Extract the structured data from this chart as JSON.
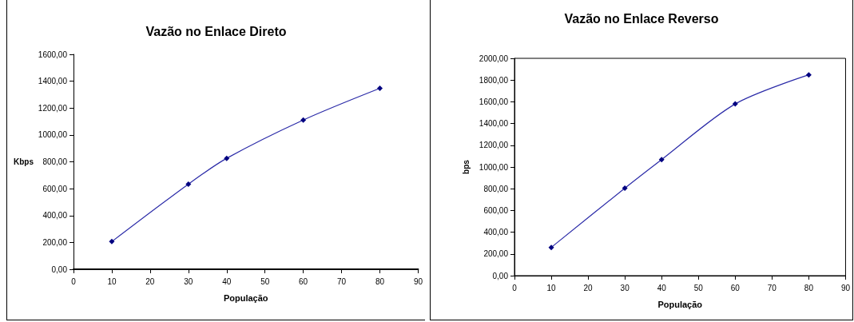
{
  "chart_data": [
    {
      "type": "line",
      "title": "Vazão no Enlace Direto",
      "xlabel": "População",
      "ylabel": "Kbps",
      "x": [
        10,
        30,
        40,
        60,
        80
      ],
      "series": [
        {
          "color": "#000080",
          "values": [
            206,
            634,
            826,
            1111,
            1347
          ]
        }
      ],
      "xlim": [
        0,
        90
      ],
      "xticks": [
        0,
        10,
        20,
        30,
        40,
        50,
        60,
        70,
        80,
        90
      ],
      "ylim": [
        0,
        1600
      ],
      "yticks": [
        {
          "value": 0,
          "label": "0,00"
        },
        {
          "value": 200,
          "label": "200,00"
        },
        {
          "value": 400,
          "label": "400,00"
        },
        {
          "value": 600,
          "label": "600,00"
        },
        {
          "value": 800,
          "label": "800,00"
        },
        {
          "value": 1000,
          "label": "1000,00"
        },
        {
          "value": 1200,
          "label": "1200,00"
        },
        {
          "value": 1400,
          "label": "1400,00"
        },
        {
          "value": 1600,
          "label": "1600,00"
        }
      ],
      "grid": false,
      "marker": "diamond",
      "line_style": "solid"
    },
    {
      "type": "line",
      "title": "Vazão no Enlace Reverso",
      "xlabel": "População",
      "ylabel": "bps",
      "x": [
        10,
        30,
        40,
        60,
        80
      ],
      "series": [
        {
          "color": "#000080",
          "values": [
            260,
            805,
            1068,
            1580,
            1848
          ]
        }
      ],
      "xlim": [
        0,
        90
      ],
      "xticks": [
        0,
        10,
        20,
        30,
        40,
        50,
        60,
        70,
        80,
        90
      ],
      "ylim": [
        0,
        2000
      ],
      "yticks": [
        {
          "value": 0,
          "label": "0,00"
        },
        {
          "value": 200,
          "label": "200,00"
        },
        {
          "value": 400,
          "label": "400,00"
        },
        {
          "value": 600,
          "label": "600,00"
        },
        {
          "value": 800,
          "label": "800,00"
        },
        {
          "value": 1000,
          "label": "1000,00"
        },
        {
          "value": 1200,
          "label": "1200,00"
        },
        {
          "value": 1400,
          "label": "1400,00"
        },
        {
          "value": 1600,
          "label": "1600,00"
        },
        {
          "value": 1800,
          "label": "1800,00"
        },
        {
          "value": 2000,
          "label": "2000,00"
        }
      ],
      "grid": false,
      "marker": "diamond",
      "line_style": "solid"
    }
  ]
}
